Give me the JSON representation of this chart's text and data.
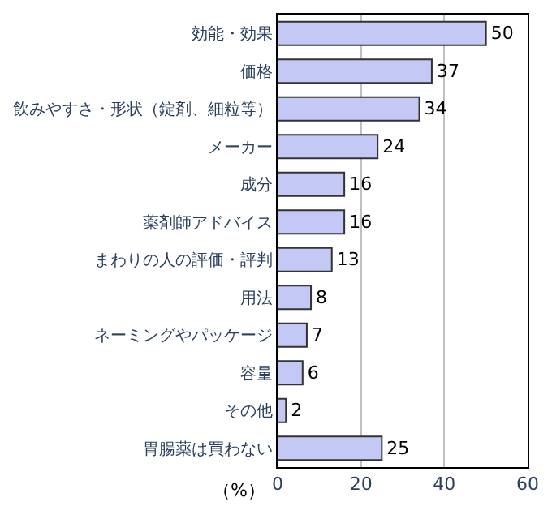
{
  "chart_data": {
    "type": "bar",
    "orientation": "horizontal",
    "xlabel": "（%）",
    "categories": [
      "効能・効果",
      "価格",
      "飲みやすさ・形状（錠剤、細粒等）",
      "メーカー",
      "成分",
      "薬剤師アドバイス",
      "まわりの人の評価・評判",
      "用法",
      "ネーミングやパッケージ",
      "容量",
      "その他",
      "胃腸薬は買わない"
    ],
    "values": [
      50,
      37,
      34,
      24,
      16,
      16,
      13,
      8,
      7,
      6,
      2,
      25
    ],
    "color": "#c4c8f4",
    "xlim": [
      0,
      60
    ],
    "xticks": [
      0,
      20,
      40,
      60
    ],
    "grid": "x",
    "data_labels": true,
    "legend": false
  }
}
